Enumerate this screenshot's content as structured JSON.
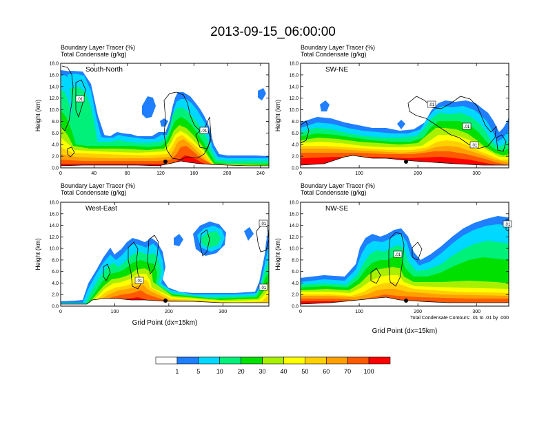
{
  "title": "2013-09-15_06:00:00",
  "panel_header_line1": "Boundary Layer Tracer   (%)",
  "panel_header_line2": "Total Condensate   (g/kg)",
  "contour_note": "Total Condensate Contours: .01 to .01 by .000",
  "colorbar": {
    "colors": [
      "#ffffff",
      "#1f7fff",
      "#00d8ff",
      "#00f07a",
      "#00e000",
      "#a8f000",
      "#ffff00",
      "#ffd000",
      "#ffa000",
      "#ff5a00",
      "#ff0000"
    ],
    "labels": [
      "1",
      "5",
      "10",
      "20",
      "30",
      "40",
      "50",
      "60",
      "70",
      "100"
    ]
  },
  "chart_data": [
    {
      "type": "heatmap",
      "panel": "South-North",
      "ylabel": "Height (km)",
      "xlabel": "",
      "xlim": [
        0,
        250
      ],
      "ylim": [
        0,
        18
      ],
      "xticks": [
        "0",
        "40",
        "80",
        "120",
        "160",
        "200",
        "240"
      ],
      "yticks": [
        "0.0",
        "2.0",
        "4.0",
        "6.0",
        "8.0",
        "10.0",
        "12.0",
        "14.0",
        "16.0",
        "18.0"
      ],
      "contour_labels": [
        ".01",
        ".01"
      ]
    },
    {
      "type": "heatmap",
      "panel": "SW-NE",
      "ylabel": "Height (km)",
      "xlabel": "",
      "xlim": [
        0,
        355
      ],
      "ylim": [
        0,
        18
      ],
      "xticks": [
        "0",
        "100",
        "200",
        "300"
      ],
      "yticks": [
        "0.0",
        "2.0",
        "4.0",
        "6.0",
        "8.0",
        "10.0",
        "12.0",
        "14.0",
        "16.0",
        "18.0"
      ],
      "contour_labels": [
        ".01",
        ".01",
        ".01"
      ]
    },
    {
      "type": "heatmap",
      "panel": "West-East",
      "ylabel": "Height (km)",
      "xlabel": "Grid Point (dx=15km)",
      "xlim": [
        0,
        385
      ],
      "ylim": [
        0,
        18
      ],
      "xticks": [
        "0",
        "100",
        "200",
        "300"
      ],
      "yticks": [
        "0.0",
        "2.0",
        "4.0",
        "6.0",
        "8.0",
        "10.0",
        "12.0",
        "14.0",
        "16.0",
        "18.0"
      ],
      "contour_labels": [
        ".01",
        ".01",
        ".01"
      ]
    },
    {
      "type": "heatmap",
      "panel": "NW-SE",
      "ylabel": "Height (km)",
      "xlabel": "Grid Point (dx=15km)",
      "xlim": [
        0,
        355
      ],
      "ylim": [
        0,
        18
      ],
      "xticks": [
        "0",
        "100",
        "200",
        "300"
      ],
      "yticks": [
        "0.0",
        "2.0",
        "4.0",
        "6.0",
        "8.0",
        "10.0",
        "12.0",
        "14.0",
        "16.0",
        "18.0"
      ],
      "contour_labels": [
        ".01",
        ".01"
      ]
    }
  ]
}
